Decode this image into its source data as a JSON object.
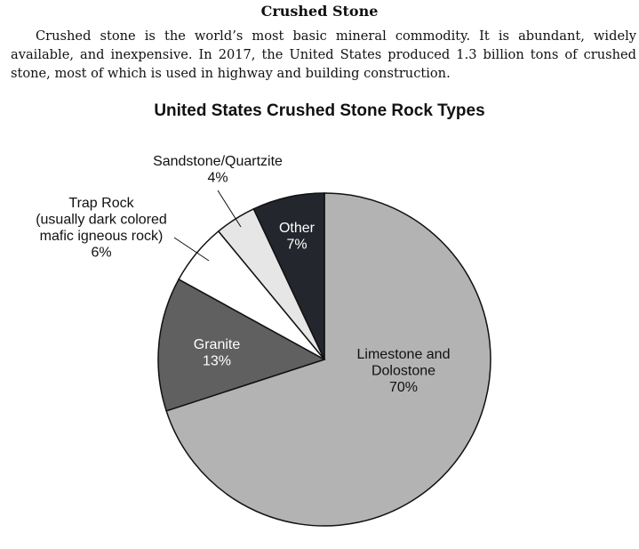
{
  "header": {
    "title": "Crushed Stone",
    "paragraph": "Crushed stone is the world’s most basic mineral commodity. It is abundant, widely available, and inexpensive. In 2017, the United States produced 1.3 billion tons of crushed stone, most of which is used in highway and building construction."
  },
  "chart_data": {
    "type": "pie",
    "title": "United States Crushed Stone Rock Types",
    "slices": [
      {
        "lines": [
          "Limestone and",
          "Dolostone",
          "70%"
        ],
        "value": 70,
        "color": "#b3b3b3",
        "text_color": "#111111"
      },
      {
        "lines": [
          "Granite",
          "13%"
        ],
        "value": 13,
        "color": "#606060",
        "text_color": "#ffffff"
      },
      {
        "lines": [
          "Trap Rock",
          "(usually dark colored",
          "mafic igneous rock)",
          "6%"
        ],
        "value": 6,
        "color": "#ffffff",
        "text_color": "#111111"
      },
      {
        "lines": [
          "Sandstone/Quartzite",
          "4%"
        ],
        "value": 4,
        "color": "#e6e6e6",
        "text_color": "#111111"
      },
      {
        "lines": [
          "Other",
          "7%"
        ],
        "value": 7,
        "color": "#23262d",
        "text_color": "#ffffff"
      }
    ]
  }
}
